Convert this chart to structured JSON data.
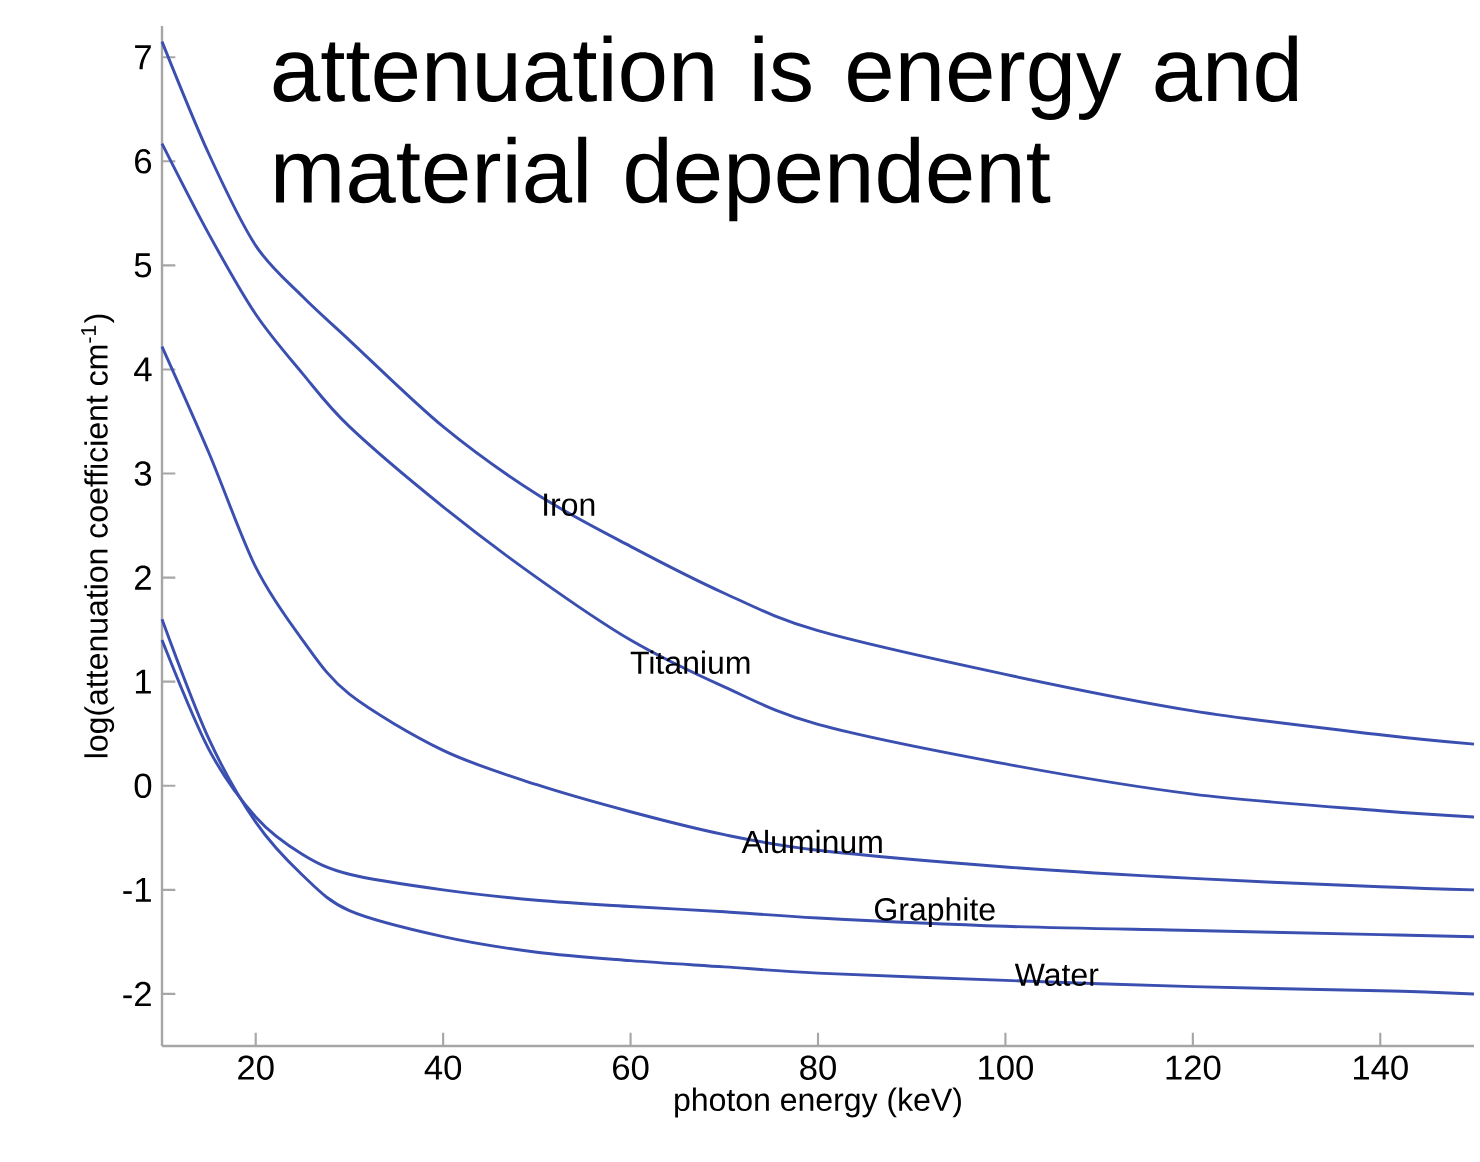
{
  "chart_data": {
    "type": "line",
    "title": "attenuation is energy and material dependent",
    "xlabel": "photon energy (keV)",
    "ylabel": "log(attenuation coefficient cm$^{-1}$)",
    "xlim": [
      10,
      150
    ],
    "ylim": [
      -2.5,
      7.3
    ],
    "xticks": [
      20,
      40,
      60,
      80,
      100,
      120,
      140
    ],
    "yticks": [
      -2,
      -1,
      0,
      1,
      2,
      3,
      4,
      5,
      6,
      7
    ],
    "grid": false,
    "marker": "none",
    "line_style": "solid",
    "series": [
      {
        "name": "Iron",
        "color": "#3a4fb0",
        "x": [
          10,
          15,
          20,
          25,
          30,
          40,
          50,
          60,
          70,
          80,
          100,
          120,
          140,
          150
        ],
        "values": [
          7.15,
          6.07,
          5.19,
          4.7,
          4.28,
          3.45,
          2.8,
          2.3,
          1.85,
          1.49,
          1.07,
          0.72,
          0.49,
          0.4
        ]
      },
      {
        "name": "Titanium",
        "color": "#3a4fb0",
        "x": [
          10,
          15,
          20,
          25,
          30,
          40,
          50,
          60,
          70,
          80,
          100,
          120,
          140,
          150
        ],
        "values": [
          6.17,
          5.3,
          4.53,
          3.96,
          3.45,
          2.68,
          2.0,
          1.4,
          0.95,
          0.59,
          0.21,
          -0.08,
          -0.24,
          -0.3
        ]
      },
      {
        "name": "Aluminum",
        "color": "#3a4fb0",
        "x": [
          10,
          15,
          20,
          25,
          30,
          40,
          50,
          60,
          70,
          80,
          100,
          120,
          140,
          150
        ],
        "values": [
          4.22,
          3.2,
          2.1,
          1.4,
          0.88,
          0.34,
          0.01,
          -0.25,
          -0.47,
          -0.62,
          -0.78,
          -0.89,
          -0.97,
          -1.0
        ]
      },
      {
        "name": "Graphite",
        "color": "#3a4fb0",
        "x": [
          10,
          15,
          20,
          25,
          30,
          40,
          50,
          60,
          70,
          80,
          100,
          120,
          140,
          150
        ],
        "values": [
          1.4,
          0.35,
          -0.3,
          -0.66,
          -0.85,
          -1.0,
          -1.1,
          -1.16,
          -1.21,
          -1.27,
          -1.35,
          -1.39,
          -1.43,
          -1.45
        ]
      },
      {
        "name": "Water",
        "color": "#3a4fb0",
        "x": [
          10,
          15,
          20,
          25,
          30,
          40,
          50,
          60,
          70,
          80,
          100,
          120,
          140,
          150
        ],
        "values": [
          1.6,
          0.45,
          -0.35,
          -0.86,
          -1.2,
          -1.45,
          -1.6,
          -1.68,
          -1.74,
          -1.8,
          -1.87,
          -1.93,
          -1.97,
          -2.0
        ]
      }
    ]
  }
}
